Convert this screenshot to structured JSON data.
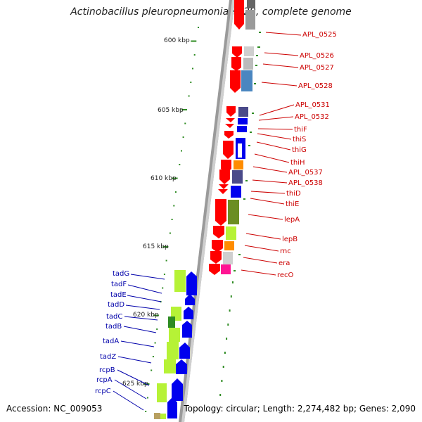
{
  "title": "Actinobacillus pleuropneumoniae L20, complete genome",
  "footer": {
    "accession": "Accession: NC_009053",
    "topology": "Topology: circular; Length: 2,274,482 bp; Genes: 2,090"
  },
  "scale_labels": [
    "600 kbp",
    "605 kbp",
    "610 kbp",
    "615 kbp",
    "620 kbp",
    "625 kbp"
  ],
  "right_genes": [
    "APL_0525",
    "APL_0526",
    "APL_0527",
    "APL_0528",
    "APL_0531",
    "APL_0532",
    "thiF",
    "thiS",
    "thiG",
    "thiH",
    "APL_0537",
    "APL_0538",
    "thiD",
    "thiE",
    "lepA",
    "lepB",
    "rnc",
    "era",
    "recO"
  ],
  "left_genes": [
    "tadG",
    "tadF",
    "tadE",
    "tadD",
    "tadC",
    "tadB",
    "tadA",
    "tadZ",
    "rcpB",
    "rcpA",
    "rcpC"
  ],
  "colors": {
    "strand_red": "#ff0000",
    "strand_blue": "#0000ee",
    "right_label": "#cc0000",
    "left_label": "#0000aa",
    "tick": "#2e8b22",
    "backbone": "#9a9a9a"
  }
}
